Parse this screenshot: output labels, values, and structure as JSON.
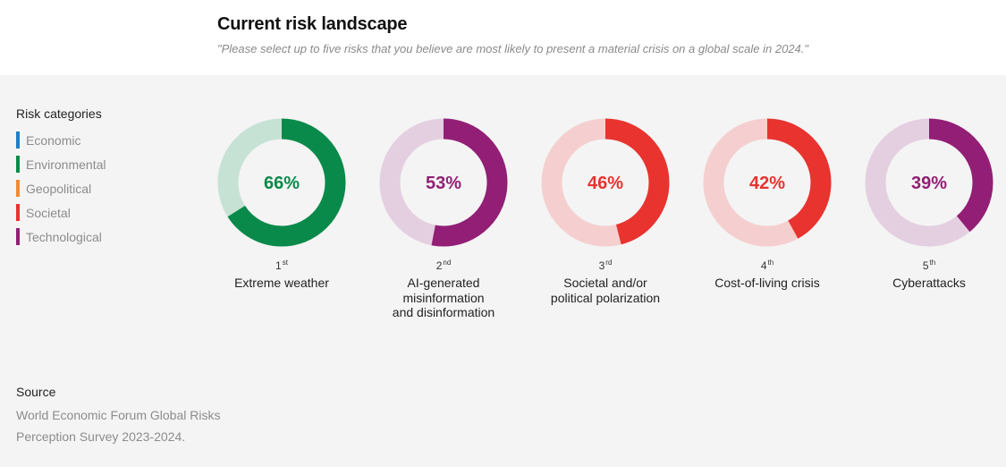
{
  "header": {
    "title": "Current risk landscape",
    "subtitle": "\"Please select up to five risks that you believe are most likely to present a material crisis on a global scale in 2024.\""
  },
  "legend": {
    "title": "Risk categories",
    "items": [
      {
        "label": "Economic",
        "color": "#1f7fc6"
      },
      {
        "label": "Environmental",
        "color": "#0a8a4a"
      },
      {
        "label": "Geopolitical",
        "color": "#f08a33"
      },
      {
        "label": "Societal",
        "color": "#e8332f"
      },
      {
        "label": "Technological",
        "color": "#921f75"
      }
    ]
  },
  "chart_data": {
    "type": "pie",
    "variant": "donut",
    "unit": "%",
    "series": [
      {
        "rank": "1",
        "rank_suffix": "st",
        "label": [
          "Extreme weather"
        ],
        "value": 66,
        "value_label": "66%",
        "category": "Environmental",
        "color": "#0a8a4a",
        "track_color": "#c6e2d5"
      },
      {
        "rank": "2",
        "rank_suffix": "nd",
        "label": [
          "AI-generated",
          "misinformation",
          "and disinformation"
        ],
        "value": 53,
        "value_label": "53%",
        "category": "Technological",
        "color": "#921f75",
        "track_color": "#e4cfe0"
      },
      {
        "rank": "3",
        "rank_suffix": "rd",
        "label": [
          "Societal and/or",
          "political polarization"
        ],
        "value": 46,
        "value_label": "46%",
        "category": "Societal",
        "color": "#e8332f",
        "track_color": "#f5cfcf"
      },
      {
        "rank": "4",
        "rank_suffix": "th",
        "label": [
          "Cost-of-living crisis"
        ],
        "value": 42,
        "value_label": "42%",
        "category": "Societal",
        "color": "#e8332f",
        "track_color": "#f5cfcf"
      },
      {
        "rank": "5",
        "rank_suffix": "th",
        "label": [
          "Cyberattacks"
        ],
        "value": 39,
        "value_label": "39%",
        "category": "Technological",
        "color": "#921f75",
        "track_color": "#e4cfe0"
      }
    ]
  },
  "source": {
    "title": "Source",
    "text": "World Economic Forum Global Risks Perception Survey 2023-2024."
  }
}
